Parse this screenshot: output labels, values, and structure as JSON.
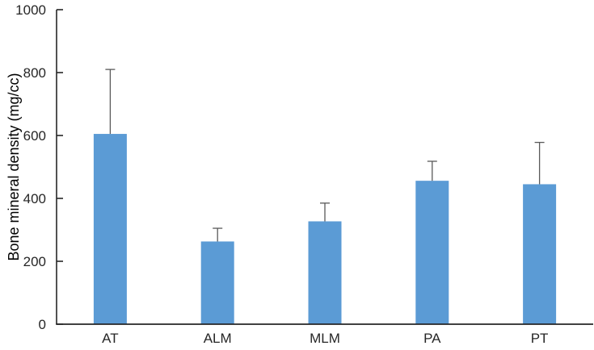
{
  "chart_data": {
    "type": "bar",
    "title": "",
    "xlabel": "",
    "ylabel": "Bone mineral density (mg/cc)",
    "categories": [
      "AT",
      "ALM",
      "MLM",
      "PA",
      "PT"
    ],
    "values": [
      605,
      263,
      327,
      456,
      445
    ],
    "error_upper": [
      205,
      42,
      58,
      62,
      133
    ],
    "ylim": [
      0,
      1000
    ],
    "yticks": [
      0,
      200,
      400,
      600,
      800,
      1000
    ],
    "grid": false,
    "legend": "none",
    "error_bar_direction": "plus-only",
    "error_bar_caps": true,
    "tick_style": "inside",
    "colors": {
      "bar": "#5B9BD5",
      "error_bar": "#595959",
      "axis": "#262626",
      "text": "#262626"
    }
  }
}
